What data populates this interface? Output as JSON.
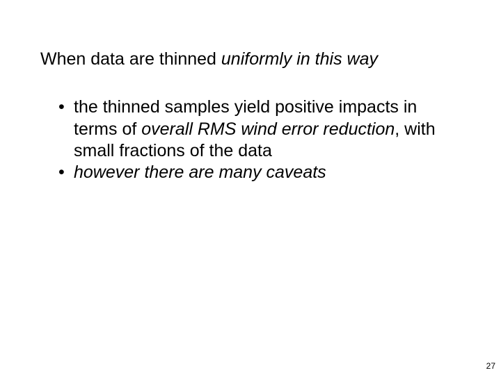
{
  "colors": {
    "background": "#ffffff",
    "text": "#000000"
  },
  "typography": {
    "body_font": "Verdana",
    "body_size_pt": 25,
    "page_num_size_pt": 12
  },
  "heading": {
    "plain_prefix": "When data are thinned ",
    "italic_suffix": "uniformly in this way"
  },
  "bullets": [
    {
      "segments": [
        {
          "text": "the thinned samples yield positive impacts in terms of ",
          "italic": false
        },
        {
          "text": "overall RMS wind error reduction",
          "italic": true
        },
        {
          "text": ", with small fractions of the data",
          "italic": false
        }
      ]
    },
    {
      "segments": [
        {
          "text": "however there are many caveats",
          "italic": true
        }
      ]
    }
  ],
  "page_number": "27"
}
